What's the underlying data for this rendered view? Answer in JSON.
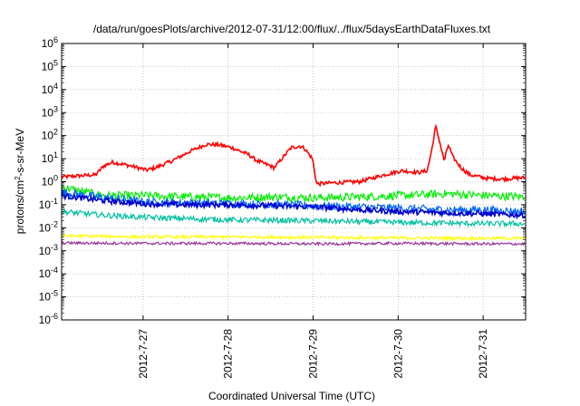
{
  "chart_data": {
    "type": "line",
    "title": "/data/run/goesPlots/archive/2012-07-31/12:00/flux/../flux/5daysEarthDataFluxes.txt",
    "xlabel": "Coordinated Universal Time (UTC)",
    "ylabel": "protons/cm²-s-sr-MeV",
    "ylabel_parts": {
      "before": "protons/cm",
      "sup": "2",
      "after": "-s-sr-MeV"
    },
    "yscale": "log",
    "ylim_exp": [
      -6,
      6
    ],
    "y_tick_exponents": [
      -6,
      -5,
      -4,
      -3,
      -2,
      -1,
      0,
      1,
      2,
      3,
      4,
      5,
      6
    ],
    "y_tick_base": "10",
    "xlim": [
      "2012-07-26 01:00",
      "2012-07-31 12:00"
    ],
    "x_ticks": [
      "2012-7-27",
      "2012-7-28",
      "2012-7-29",
      "2012-7-30",
      "2012-7-31"
    ],
    "grid": true,
    "series": [
      {
        "color": "#ff0000",
        "x_days": [
          0.0,
          0.2,
          0.4,
          0.5,
          0.6,
          0.8,
          1.0,
          1.1,
          1.3,
          1.5,
          1.7,
          1.85,
          2.0,
          2.2,
          2.3,
          2.45,
          2.5,
          2.7,
          2.8,
          2.85,
          2.95,
          3.0,
          3.2,
          3.5,
          3.8,
          4.0,
          4.2,
          4.3,
          4.35,
          4.4,
          4.45,
          4.5,
          4.55,
          4.6,
          4.7,
          4.8,
          5.0,
          5.2,
          5.3,
          5.45
        ],
        "values": [
          1.6,
          1.8,
          2.0,
          5.0,
          7.0,
          5.0,
          3.2,
          4.0,
          8.0,
          20,
          42,
          40,
          30,
          15,
          8,
          5,
          4,
          30,
          35,
          30,
          10,
          0.8,
          0.9,
          1.0,
          2.0,
          3.0,
          2.5,
          3.0,
          20,
          250,
          50,
          8,
          40,
          12,
          4,
          2,
          1.4,
          1.3,
          1.4,
          1.5
        ]
      },
      {
        "color": "#00ee00",
        "x_days": [
          0.0,
          0.2,
          0.5,
          1.0,
          1.5,
          2.0,
          2.5,
          3.0,
          3.5,
          4.0,
          4.5,
          5.0,
          5.45
        ],
        "values": [
          0.6,
          0.4,
          0.25,
          0.25,
          0.22,
          0.2,
          0.22,
          0.2,
          0.22,
          0.25,
          0.3,
          0.25,
          0.22
        ]
      },
      {
        "color": "#0066ff",
        "x_days": [
          0.0,
          0.5,
          1.0,
          1.5,
          2.0,
          2.5,
          3.0,
          3.5,
          4.0,
          4.5,
          5.0,
          5.45
        ],
        "values": [
          0.35,
          0.2,
          0.13,
          0.12,
          0.11,
          0.1,
          0.09,
          0.08,
          0.07,
          0.06,
          0.06,
          0.05
        ]
      },
      {
        "color": "#0000cc",
        "x_days": [
          0.0,
          0.5,
          1.0,
          1.5,
          2.0,
          2.5,
          3.0,
          3.5,
          4.0,
          4.5,
          5.0,
          5.45
        ],
        "values": [
          0.25,
          0.15,
          0.11,
          0.1,
          0.1,
          0.09,
          0.08,
          0.06,
          0.05,
          0.045,
          0.04,
          0.035
        ]
      },
      {
        "color": "#00c0a0",
        "x_days": [
          0.0,
          0.5,
          1.0,
          2.0,
          3.0,
          4.0,
          5.0,
          5.45
        ],
        "values": [
          0.05,
          0.035,
          0.028,
          0.022,
          0.02,
          0.017,
          0.015,
          0.015
        ]
      },
      {
        "color": "#ffff00",
        "x_days": [
          0.0,
          1.0,
          2.0,
          3.0,
          4.0,
          5.0,
          5.45
        ],
        "values": [
          0.0045,
          0.004,
          0.004,
          0.0038,
          0.0036,
          0.0035,
          0.0035
        ]
      },
      {
        "color": "#993399",
        "x_days": [
          0.0,
          1.0,
          2.0,
          3.0,
          4.0,
          5.0,
          5.45
        ],
        "values": [
          0.0022,
          0.0021,
          0.0021,
          0.002,
          0.0021,
          0.002,
          0.002
        ]
      }
    ]
  }
}
